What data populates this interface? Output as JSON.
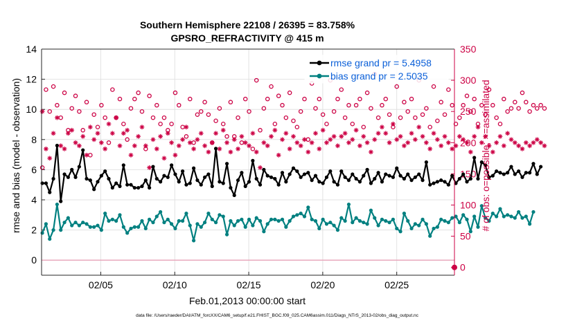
{
  "chart_data": {
    "type": "line",
    "title": [
      "Southern Hemisphere 22108 / 26395 = 83.758%",
      "GPSRO_REFRACTIVITY @ 415 m"
    ],
    "xlabel": "Feb.01,2013 00:00:00 start",
    "ylabel": "rmse and bias (model - observation)",
    "y2label": "# of obs: o=possible; ×=assimilated",
    "footnote": "data file: /Users/raeder/DAI/ATM_forcXX/CAM6_setup/f.e21.FHIST_BGC.f09_025.CAM6assim.011/Diags_NTrS_2013-02/obs_diag_output.nc",
    "xlim": [
      1.0,
      28.9
    ],
    "ylim": [
      -1,
      14
    ],
    "y2lim": [
      -12.5,
      350
    ],
    "x_ticks": [
      5,
      10,
      15,
      20,
      25
    ],
    "x_tick_labels": [
      "02/05",
      "02/10",
      "02/15",
      "02/20",
      "02/25"
    ],
    "y_ticks": [
      0,
      2,
      4,
      6,
      8,
      10,
      12,
      14
    ],
    "y2_ticks": [
      0,
      50,
      100,
      150,
      200,
      250,
      300,
      350
    ],
    "grid": true,
    "legend_position": "top-right",
    "x_step_days": 0.25,
    "series": [
      {
        "name": "rmse grand pr = 5.4958",
        "color": "#000000",
        "marker": "dot",
        "axis": "left",
        "values": [
          5.1,
          5.1,
          4.5,
          5.4,
          7.6,
          3.9,
          5.7,
          5.5,
          6.0,
          5.5,
          6.2,
          7.3,
          5.4,
          5.3,
          4.7,
          5.2,
          5.6,
          5.9,
          5.4,
          4.8,
          5.1,
          4.9,
          6.3,
          5.0,
          5.0,
          4.8,
          4.8,
          4.9,
          5.3,
          4.8,
          6.2,
          5.4,
          5.2,
          5.6,
          5.5,
          6.3,
          5.7,
          5.2,
          5.9,
          5.0,
          5.1,
          6.1,
          5.3,
          5.0,
          5.5,
          5.7,
          4.9,
          7.4,
          5.2,
          5.1,
          6.4,
          4.8,
          4.3,
          5.3,
          5.8,
          4.9,
          5.2,
          6.6,
          5.4,
          5.0,
          6.0,
          5.6,
          5.5,
          5.4,
          5.0,
          5.8,
          5.2,
          5.7,
          6.1,
          5.9,
          5.5,
          5.7,
          5.8,
          5.3,
          5.6,
          5.2,
          5.1,
          5.5,
          5.9,
          5.2,
          5.0,
          5.9,
          5.5,
          5.3,
          5.7,
          5.4,
          5.2,
          5.6,
          6.0,
          5.1,
          5.4,
          5.8,
          5.2,
          5.7,
          5.6,
          5.5,
          6.1,
          5.6,
          5.4,
          5.7,
          5.3,
          5.5,
          5.7,
          5.3,
          6.5,
          5.0,
          5.1,
          5.2,
          5.3,
          5.2,
          5.0,
          5.6,
          5.1,
          5.4,
          5.7,
          5.2,
          5.4,
          6.8,
          5.4,
          6.5,
          6.3,
          5.5,
          5.6,
          5.9,
          5.8,
          5.7,
          5.8,
          6.2,
          5.7,
          5.9,
          5.5,
          5.8,
          5.8,
          6.4,
          5.7,
          6.2
        ]
      },
      {
        "name": "bias grand pr = 2.5035",
        "color": "#008080",
        "marker": "dot",
        "axis": "left",
        "values": [
          1.8,
          2.4,
          1.4,
          2.0,
          3.7,
          2.0,
          2.5,
          2.8,
          2.3,
          2.5,
          2.3,
          2.5,
          2.4,
          2.2,
          2.2,
          2.3,
          2.0,
          3.1,
          2.6,
          2.7,
          2.6,
          3.0,
          2.2,
          1.8,
          2.1,
          2.2,
          2.2,
          2.6,
          2.1,
          2.7,
          2.5,
          2.9,
          3.2,
          2.5,
          2.7,
          2.4,
          2.1,
          2.6,
          2.6,
          3.1,
          2.3,
          1.3,
          2.4,
          2.2,
          2.5,
          3.1,
          2.7,
          2.5,
          3.0,
          2.9,
          1.7,
          2.6,
          2.3,
          2.6,
          2.7,
          2.2,
          2.7,
          2.3,
          2.8,
          2.6,
          1.9,
          2.4,
          2.7,
          2.7,
          2.6,
          2.7,
          2.2,
          2.6,
          2.9,
          3.0,
          3.1,
          2.9,
          3.5,
          2.7,
          2.6,
          2.1,
          2.7,
          2.4,
          2.5,
          2.3,
          2.0,
          2.8,
          2.6,
          3.7,
          2.5,
          2.8,
          2.6,
          2.5,
          2.4,
          3.3,
          2.8,
          2.3,
          2.7,
          2.6,
          2.5,
          2.7,
          2.1,
          1.9,
          3.1,
          2.6,
          2.1,
          2.4,
          2.3,
          2.7,
          2.4,
          1.6,
          2.1,
          2.2,
          2.7,
          2.6,
          2.5,
          2.8,
          2.9,
          2.5,
          3.0,
          2.7,
          1.9,
          2.9,
          2.2,
          3.6,
          2.8,
          2.6,
          3.1,
          2.9,
          3.4,
          2.9,
          3.0,
          2.9,
          2.8,
          3.2,
          2.8,
          2.9,
          2.4,
          3.2
        ]
      },
      {
        "name": "possible",
        "color": "#cc0044",
        "marker": "circle",
        "axis": "right",
        "values": [
          160,
          285,
          250,
          290,
          260,
          240,
          280,
          220,
          255,
          275,
          250,
          220,
          265,
          180,
          245,
          225,
          260,
          240,
          200,
          285,
          240,
          270,
          230,
          205,
          255,
          270,
          280,
          250,
          190,
          275,
          240,
          260,
          230,
          240,
          220,
          230,
          280,
          260,
          225,
          210,
          270,
          200,
          245,
          250,
          265,
          245,
          200,
          235,
          255,
          230,
          210,
          265,
          210,
          240,
          200,
          270,
          250,
          190,
          300,
          220,
          255,
          270,
          290,
          230,
          275,
          260,
          240,
          280,
          235,
          225,
          250,
          270,
          205,
          295,
          255,
          270,
          245,
          230,
          300,
          250,
          270,
          285,
          240,
          260,
          230,
          260,
          270,
          225,
          280,
          255,
          310,
          240,
          260,
          270,
          245,
          225,
          290,
          240,
          265,
          250,
          270,
          240,
          300,
          245,
          255,
          225,
          290,
          235,
          265,
          245,
          285,
          260,
          230,
          240,
          260,
          275,
          250,
          270,
          230,
          260,
          245,
          285,
          260,
          240,
          230,
          270,
          250,
          255,
          265,
          255,
          280,
          265,
          250,
          260,
          255,
          260,
          255
        ]
      },
      {
        "name": "assimilated",
        "color": "#cc0044",
        "marker": "asterisk",
        "axis": "right",
        "values": [
          250,
          190,
          175,
          215,
          240,
          195,
          190,
          215,
          220,
          200,
          195,
          210,
          180,
          225,
          205,
          215,
          200,
          190,
          230,
          215,
          240,
          195,
          215,
          220,
          180,
          195,
          210,
          225,
          195,
          160,
          205,
          190,
          210,
          175,
          215,
          200,
          180,
          195,
          205,
          225,
          200,
          190,
          205,
          215,
          195,
          185,
          200,
          215,
          190,
          220,
          200,
          185,
          205,
          190,
          210,
          200,
          195,
          215,
          185,
          160,
          200,
          195,
          210,
          220,
          180,
          205,
          215,
          190,
          210,
          200,
          195,
          205,
          185,
          200,
          215,
          190,
          220,
          200,
          205,
          210,
          195,
          210,
          215,
          200,
          205,
          220,
          195,
          210,
          200,
          185,
          205,
          215,
          225,
          215,
          200,
          230,
          205,
          210,
          195,
          200,
          215,
          205,
          225,
          210,
          200,
          190,
          215,
          205,
          195,
          210,
          200,
          190,
          195,
          210,
          205,
          200,
          185,
          210,
          225,
          200,
          210,
          195,
          185,
          200,
          210,
          195,
          215,
          205,
          200,
          195,
          190,
          200,
          195,
          200,
          205,
          200,
          195
        ]
      }
    ]
  }
}
